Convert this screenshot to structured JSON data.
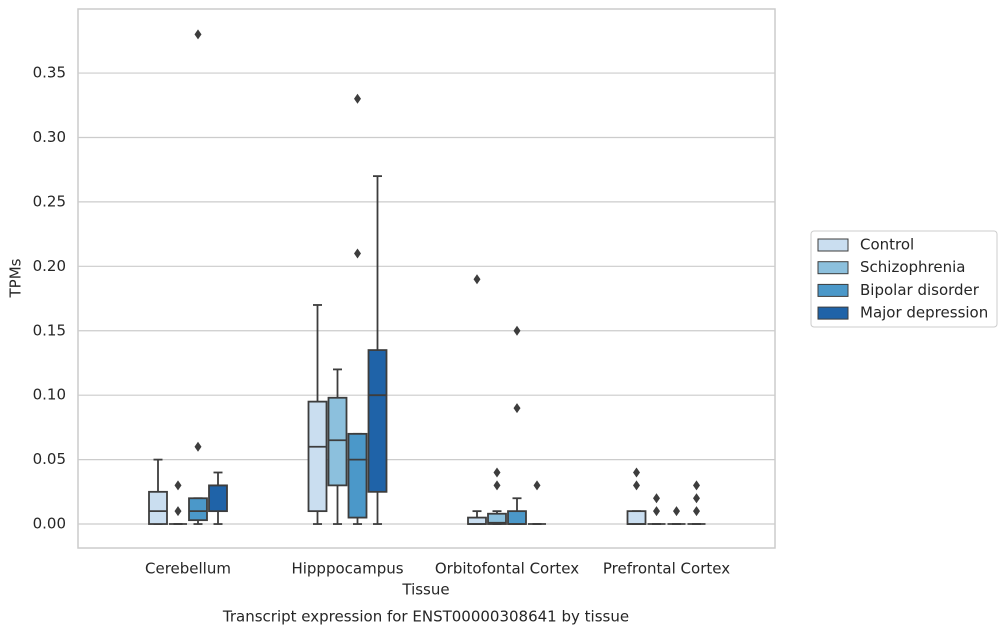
{
  "chart_data": {
    "type": "box",
    "title": "Transcript expression for ENST00000308641 by tissue",
    "x_label": "Tissue",
    "y_label": "TPMs",
    "categories": [
      "Cerebellum",
      "Hipppocampus",
      "Orbitofontal Cortex",
      "Prefrontal Cortex"
    ],
    "ylim": [
      -0.0186,
      0.3997
    ],
    "yticks": [
      {
        "value": 0,
        "label": "0.00"
      },
      {
        "value": 0.05,
        "label": "0.05"
      },
      {
        "value": 0.1,
        "label": "0.10"
      },
      {
        "value": 0.15,
        "label": "0.15"
      },
      {
        "value": 0.2,
        "label": "0.20"
      },
      {
        "value": 0.25,
        "label": "0.25"
      },
      {
        "value": 0.3,
        "label": "0.30"
      },
      {
        "value": 0.35,
        "label": "0.35"
      }
    ],
    "grid": true,
    "legend_position": "right",
    "series": [
      {
        "name": "Control",
        "color": "#cadef0",
        "boxes": [
          {
            "min": 0,
            "q1": 0,
            "median": 0.01,
            "q3": 0.025,
            "max": 0.05,
            "outliers": []
          },
          {
            "min": 0,
            "q1": 0.01,
            "median": 0.06,
            "q3": 0.095,
            "max": 0.17,
            "outliers": []
          },
          {
            "min": 0,
            "q1": 0,
            "median": 0,
            "q3": 0.005,
            "max": 0.01,
            "outliers": [
              0.19
            ]
          },
          {
            "min": 0,
            "q1": 0,
            "median": 0,
            "q3": 0.01,
            "max": 0.01,
            "outliers": [
              0.03,
              0.04
            ]
          }
        ]
      },
      {
        "name": "Schizophrenia",
        "color": "#8cc0dd",
        "boxes": [
          {
            "min": 0,
            "q1": 0,
            "median": 0,
            "q3": 0,
            "max": 0,
            "outliers": [
              0.01,
              0.03
            ]
          },
          {
            "min": 0,
            "q1": 0.03,
            "median": 0.065,
            "q3": 0.098,
            "max": 0.12,
            "outliers": []
          },
          {
            "min": 0,
            "q1": 0,
            "median": 0.001,
            "q3": 0.008,
            "max": 0.01,
            "outliers": [
              0.03,
              0.04
            ]
          },
          {
            "min": 0,
            "q1": 0,
            "median": 0,
            "q3": 0,
            "max": 0,
            "outliers": [
              0.01,
              0.02
            ]
          }
        ]
      },
      {
        "name": "Bipolar disorder",
        "color": "#4b98c9",
        "boxes": [
          {
            "min": 0,
            "q1": 0.003,
            "median": 0.01,
            "q3": 0.02,
            "max": 0.02,
            "outliers": [
              0.06,
              0.38
            ]
          },
          {
            "min": 0,
            "q1": 0.005,
            "median": 0.05,
            "q3": 0.07,
            "max": 0.07,
            "outliers": [
              0.21,
              0.33
            ]
          },
          {
            "min": 0,
            "q1": 0,
            "median": 0,
            "q3": 0.01,
            "max": 0.02,
            "outliers": [
              0.09,
              0.15
            ]
          },
          {
            "min": 0,
            "q1": 0,
            "median": 0,
            "q3": 0,
            "max": 0,
            "outliers": [
              0.01
            ]
          }
        ]
      },
      {
        "name": "Major depression",
        "color": "#1f63a8",
        "boxes": [
          {
            "min": 0,
            "q1": 0.01,
            "median": 0.03,
            "q3": 0.03,
            "max": 0.04,
            "outliers": []
          },
          {
            "min": 0,
            "q1": 0.025,
            "median": 0.1,
            "q3": 0.135,
            "max": 0.27,
            "outliers": []
          },
          {
            "min": 0,
            "q1": 0,
            "median": 0,
            "q3": 0,
            "max": 0,
            "outliers": [
              0.03
            ]
          },
          {
            "min": 0,
            "q1": 0,
            "median": 0,
            "q3": 0,
            "max": 0,
            "outliers": [
              0.01,
              0.02,
              0.03
            ]
          }
        ]
      }
    ]
  }
}
